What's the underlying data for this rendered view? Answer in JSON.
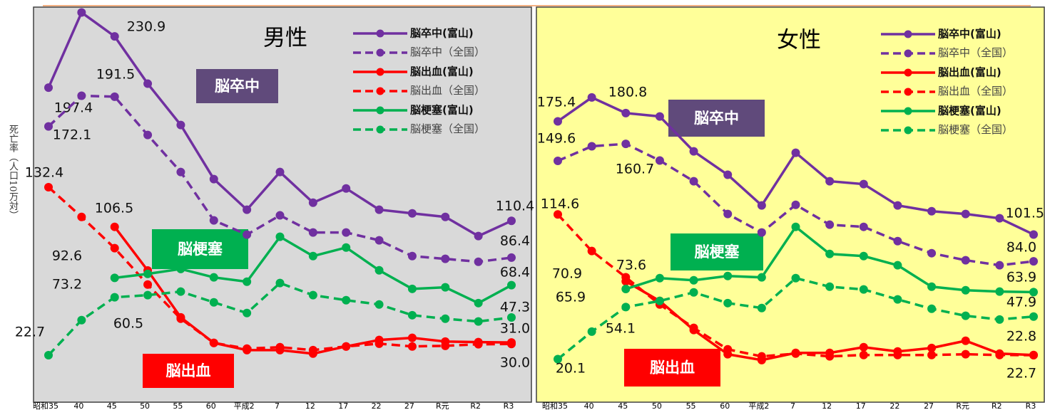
{
  "y_label": "死亡率（人口10万対）",
  "chart_data": [
    {
      "type": "line",
      "title": "男性",
      "categories": [
        "昭和35",
        "40",
        "45",
        "50",
        "55",
        "60",
        "平成2",
        "7",
        "12",
        "17",
        "22",
        "27",
        "R元",
        "R2",
        "R3"
      ],
      "ylim": [
        -8,
        250
      ],
      "background": "#d9d9d9",
      "annotations": [
        {
          "text": "脳卒中",
          "color": "#604a7b"
        },
        {
          "text": "脳梗塞",
          "color": "#00b050"
        },
        {
          "text": "脳出血",
          "color": "#ff0000"
        }
      ],
      "series": [
        {
          "name": "脳卒中(富山)",
          "color": "#7030a0",
          "dashed": false,
          "values": [
            197.4,
            246.5,
            230.9,
            200,
            173,
            137.7,
            117.7,
            142.3,
            122.3,
            131.6,
            117.7,
            115.3,
            113.0,
            100.5,
            110.4
          ],
          "value_labels": [
            "197.4",
            null,
            "230.9",
            null,
            null,
            null,
            null,
            null,
            null,
            null,
            null,
            null,
            null,
            null,
            "110.4"
          ]
        },
        {
          "name": "脳卒中（全国）",
          "color": "#7030a0",
          "dashed": true,
          "values": [
            172.1,
            192.1,
            191.5,
            166.5,
            142.3,
            110.7,
            101.4,
            114,
            102.8,
            102.8,
            97.7,
            87.4,
            85.6,
            83.7,
            86.4
          ],
          "value_labels": [
            "172.1",
            null,
            "191.5",
            null,
            null,
            null,
            null,
            null,
            null,
            null,
            null,
            null,
            null,
            null,
            "86.4"
          ]
        },
        {
          "name": "脳出血(富山)",
          "color": "#ff0000",
          "dashed": false,
          "values": [
            null,
            null,
            106.5,
            78,
            47.4,
            30.7,
            26,
            26,
            23.7,
            28.4,
            32.6,
            34,
            31.6,
            31.2,
            31.0
          ],
          "value_labels": [
            null,
            null,
            "106.5",
            null,
            null,
            null,
            null,
            null,
            null,
            null,
            null,
            null,
            null,
            null,
            "31.0"
          ]
        },
        {
          "name": "脳出血（全国）",
          "color": "#ff0000",
          "dashed": true,
          "values": [
            132.4,
            113,
            92.6,
            68.8,
            46.5,
            30.7,
            27,
            27.9,
            26,
            28.4,
            30.2,
            28.4,
            28.8,
            29.8,
            30.0
          ],
          "value_labels": [
            "132.4",
            null,
            "92.6",
            null,
            null,
            null,
            null,
            null,
            null,
            null,
            null,
            null,
            null,
            null,
            "30.0"
          ]
        },
        {
          "name": "脳梗塞(富山)",
          "color": "#00b050",
          "dashed": false,
          "values": [
            null,
            null,
            73.2,
            75.8,
            79,
            73.5,
            70.7,
            100,
            87.4,
            93,
            78.1,
            66,
            67,
            56.7,
            68.4
          ],
          "value_labels": [
            null,
            null,
            "73.2",
            null,
            null,
            null,
            null,
            null,
            null,
            null,
            null,
            null,
            null,
            null,
            "68.4"
          ]
        },
        {
          "name": "脳梗塞（全国）",
          "color": "#00b050",
          "dashed": true,
          "values": [
            22.7,
            45.6,
            60.5,
            61.9,
            64.2,
            57.2,
            50.2,
            69.8,
            61.9,
            58.6,
            55.8,
            48.8,
            46.5,
            44.7,
            47.3
          ],
          "value_labels": [
            "22.7",
            null,
            "60.5",
            null,
            null,
            null,
            null,
            null,
            null,
            null,
            null,
            null,
            null,
            null,
            "47.3"
          ]
        }
      ]
    },
    {
      "type": "line",
      "title": "女性",
      "categories": [
        "昭和35",
        "40",
        "45",
        "50",
        "55",
        "60",
        "平成2",
        "7",
        "12",
        "17",
        "22",
        "27",
        "R元",
        "R2",
        "R3"
      ],
      "ylim": [
        -8,
        250
      ],
      "background": "#ffff99",
      "annotations": [
        {
          "text": "脳卒中",
          "color": "#604a7b"
        },
        {
          "text": "脳梗塞",
          "color": "#00b050"
        },
        {
          "text": "脳出血",
          "color": "#ff0000"
        }
      ],
      "series": [
        {
          "name": "脳卒中(富山)",
          "color": "#7030a0",
          "dashed": false,
          "values": [
            175.4,
            191,
            180.8,
            178.6,
            155.8,
            140.5,
            120.5,
            154.9,
            136.3,
            134.4,
            120.5,
            116.7,
            114.9,
            112.1,
            101.5
          ],
          "value_labels": [
            "175.4",
            null,
            "180.8",
            null,
            null,
            null,
            null,
            null,
            null,
            null,
            null,
            null,
            null,
            null,
            "101.5"
          ]
        },
        {
          "name": "脳卒中（全国）",
          "color": "#7030a0",
          "dashed": true,
          "values": [
            149.6,
            159.1,
            160.7,
            149.8,
            136.3,
            114.9,
            102.8,
            120.9,
            107.9,
            106.5,
            97.2,
            89.3,
            84.7,
            81.4,
            84.0
          ],
          "value_labels": [
            "149.6",
            null,
            "160.7",
            null,
            null,
            null,
            null,
            null,
            null,
            null,
            null,
            null,
            null,
            null,
            "84.0"
          ]
        },
        {
          "name": "脳出血(富山)",
          "color": "#ff0000",
          "dashed": false,
          "values": [
            null,
            null,
            70.9,
            58.1,
            39.1,
            23.3,
            19.5,
            24.2,
            24.2,
            27.9,
            25.1,
            27.4,
            32.1,
            23.7,
            22.8
          ],
          "value_labels": [
            null,
            null,
            "70.9",
            null,
            null,
            null,
            null,
            null,
            null,
            null,
            null,
            null,
            null,
            null,
            "22.8"
          ]
        },
        {
          "name": "脳出血（全国）",
          "color": "#ff0000",
          "dashed": true,
          "values": [
            114.6,
            90.7,
            73.6,
            55.8,
            40.5,
            26.5,
            21.9,
            23.7,
            21.9,
            22.8,
            22.8,
            22.8,
            23.3,
            22.8,
            22.7
          ],
          "value_labels": [
            "114.6",
            null,
            "73.6",
            null,
            null,
            null,
            null,
            null,
            null,
            null,
            null,
            null,
            null,
            null,
            "22.7"
          ]
        },
        {
          "name": "脳梗塞(富山)",
          "color": "#00b050",
          "dashed": false,
          "values": [
            null,
            null,
            65.9,
            73,
            71.6,
            74.4,
            73.5,
            106.5,
            88.8,
            87.4,
            81.4,
            67.4,
            65.1,
            64.2,
            63.9
          ],
          "value_labels": [
            null,
            null,
            "65.9",
            null,
            null,
            null,
            null,
            null,
            null,
            null,
            null,
            null,
            null,
            null,
            "63.9"
          ]
        },
        {
          "name": "脳梗塞（全国）",
          "color": "#00b050",
          "dashed": true,
          "values": [
            20.1,
            38.1,
            54.1,
            58.1,
            63.7,
            56.7,
            53.5,
            73,
            67.4,
            65.6,
            59.1,
            53,
            48.4,
            46,
            47.9
          ],
          "value_labels": [
            "20.1",
            null,
            "54.1",
            null,
            null,
            null,
            null,
            null,
            null,
            null,
            null,
            null,
            null,
            null,
            "47.9"
          ]
        }
      ]
    }
  ]
}
